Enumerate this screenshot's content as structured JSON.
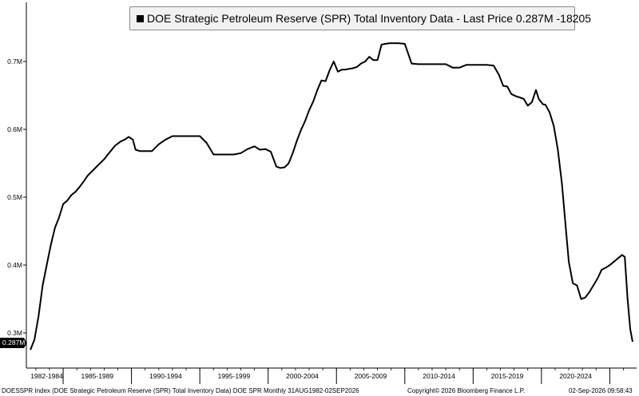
{
  "legend": {
    "text": "DOE Strategic Petroleum Reserve (SPR) Total Inventory Data - Last Price 0.287M  -18205"
  },
  "last_price_tag": "0.287M",
  "footer": {
    "left": "DOESSPR Index (DOE Strategic Petroleum Reserve (SPR) Total Inventory Data) DOE SPR Monthly 31AUG1982-02SEP2026",
    "center": "Copyright© 2026 Bloomberg Finance L.P.",
    "right": "02-Sep-2026 09:58:43"
  },
  "colors": {
    "line": "#000000",
    "axis": "#000000",
    "legend_bg": "#f2f2f2",
    "legend_border": "#8a8a8a"
  },
  "chart_data": {
    "type": "line",
    "title": "",
    "xlabel": "",
    "ylabel": "",
    "y_unit": "M",
    "ylim": [
      0.27,
      0.79
    ],
    "xlim": [
      1982.6,
      2026.67
    ],
    "grid": false,
    "legend_position": "top-center",
    "yticks": [
      {
        "value": 0.3,
        "label": "0.3M"
      },
      {
        "value": 0.4,
        "label": "0.4M"
      },
      {
        "value": 0.5,
        "label": "0.5M"
      },
      {
        "value": 0.6,
        "label": "0.6M"
      },
      {
        "value": 0.7,
        "label": "0.7M"
      }
    ],
    "x_period_labels": [
      {
        "label": "1982-1984",
        "start": 1982.6,
        "end": 1985.0
      },
      {
        "label": "1985-1989",
        "start": 1985.0,
        "end": 1990.0
      },
      {
        "label": "1990-1994",
        "start": 1990.0,
        "end": 1995.0
      },
      {
        "label": "1995-1999",
        "start": 1995.0,
        "end": 2000.0
      },
      {
        "label": "2000-2004",
        "start": 2000.0,
        "end": 2005.0
      },
      {
        "label": "2005-2009",
        "start": 2005.0,
        "end": 2010.0
      },
      {
        "label": "2010-2014",
        "start": 2010.0,
        "end": 2015.0
      },
      {
        "label": "2015-2019",
        "start": 2015.0,
        "end": 2020.0
      },
      {
        "label": "2020-2024",
        "start": 2020.0,
        "end": 2025.0
      }
    ],
    "x_boundaries": [
      1985,
      1990,
      1995,
      2000,
      2005,
      2010,
      2015,
      2020,
      2025
    ],
    "series": [
      {
        "name": "DOE Strategic Petroleum Reserve (SPR) Total Inventory Data",
        "x": [
          1982.6,
          1982.9,
          1983.2,
          1983.5,
          1983.8,
          1984.1,
          1984.4,
          1984.7,
          1985.0,
          1985.3,
          1985.6,
          1985.9,
          1986.2,
          1986.5,
          1986.8,
          1987.2,
          1987.6,
          1988.0,
          1988.4,
          1988.8,
          1989.2,
          1989.5,
          1989.8,
          1990.1,
          1990.3,
          1990.6,
          1991.0,
          1991.5,
          1992.0,
          1992.5,
          1993.0,
          1993.5,
          1994.0,
          1994.5,
          1995.0,
          1995.5,
          1996.0,
          1996.5,
          1997.0,
          1997.5,
          1998.0,
          1998.5,
          1999.0,
          1999.4,
          1999.8,
          2000.2,
          2000.6,
          2000.9,
          2001.2,
          2001.5,
          2001.8,
          2002.1,
          2002.4,
          2002.7,
          2003.0,
          2003.3,
          2003.6,
          2003.9,
          2004.2,
          2004.5,
          2004.8,
          2005.1,
          2005.4,
          2005.6,
          2005.9,
          2006.2,
          2006.5,
          2006.8,
          2007.1,
          2007.4,
          2007.7,
          2008.0,
          2008.3,
          2008.6,
          2008.9,
          2009.2,
          2009.5,
          2010.0,
          2010.5,
          2011.0,
          2011.5,
          2012.0,
          2012.5,
          2013.0,
          2013.5,
          2014.0,
          2014.5,
          2015.0,
          2015.5,
          2016.0,
          2016.5,
          2016.9,
          2017.2,
          2017.5,
          2017.8,
          2018.1,
          2018.4,
          2018.7,
          2019.0,
          2019.3,
          2019.6,
          2019.8,
          2020.1,
          2020.3,
          2020.6,
          2020.9,
          2021.2,
          2021.5,
          2021.8,
          2022.0,
          2022.3,
          2022.6,
          2022.9,
          2023.2,
          2023.5,
          2023.8,
          2024.1,
          2024.4,
          2024.7,
          2025.0,
          2025.3,
          2025.6,
          2025.9,
          2026.1,
          2026.3,
          2026.5,
          2026.67
        ],
        "values": [
          0.275,
          0.29,
          0.325,
          0.37,
          0.4,
          0.43,
          0.455,
          0.47,
          0.49,
          0.495,
          0.503,
          0.508,
          0.515,
          0.523,
          0.532,
          0.54,
          0.548,
          0.556,
          0.566,
          0.576,
          0.582,
          0.585,
          0.589,
          0.585,
          0.57,
          0.568,
          0.568,
          0.568,
          0.578,
          0.585,
          0.59,
          0.59,
          0.59,
          0.59,
          0.59,
          0.58,
          0.563,
          0.563,
          0.563,
          0.563,
          0.565,
          0.571,
          0.575,
          0.57,
          0.571,
          0.567,
          0.545,
          0.543,
          0.544,
          0.55,
          0.565,
          0.583,
          0.599,
          0.612,
          0.628,
          0.641,
          0.658,
          0.672,
          0.671,
          0.687,
          0.7,
          0.685,
          0.688,
          0.688,
          0.689,
          0.69,
          0.692,
          0.697,
          0.7,
          0.707,
          0.702,
          0.702,
          0.725,
          0.726,
          0.727,
          0.727,
          0.727,
          0.726,
          0.697,
          0.696,
          0.696,
          0.696,
          0.696,
          0.696,
          0.691,
          0.691,
          0.695,
          0.695,
          0.695,
          0.695,
          0.694,
          0.68,
          0.664,
          0.663,
          0.652,
          0.649,
          0.647,
          0.645,
          0.635,
          0.64,
          0.658,
          0.645,
          0.637,
          0.636,
          0.625,
          0.605,
          0.57,
          0.52,
          0.45,
          0.405,
          0.373,
          0.37,
          0.35,
          0.352,
          0.36,
          0.37,
          0.38,
          0.393,
          0.396,
          0.4,
          0.405,
          0.41,
          0.415,
          0.412,
          0.35,
          0.305,
          0.287
        ]
      }
    ]
  }
}
